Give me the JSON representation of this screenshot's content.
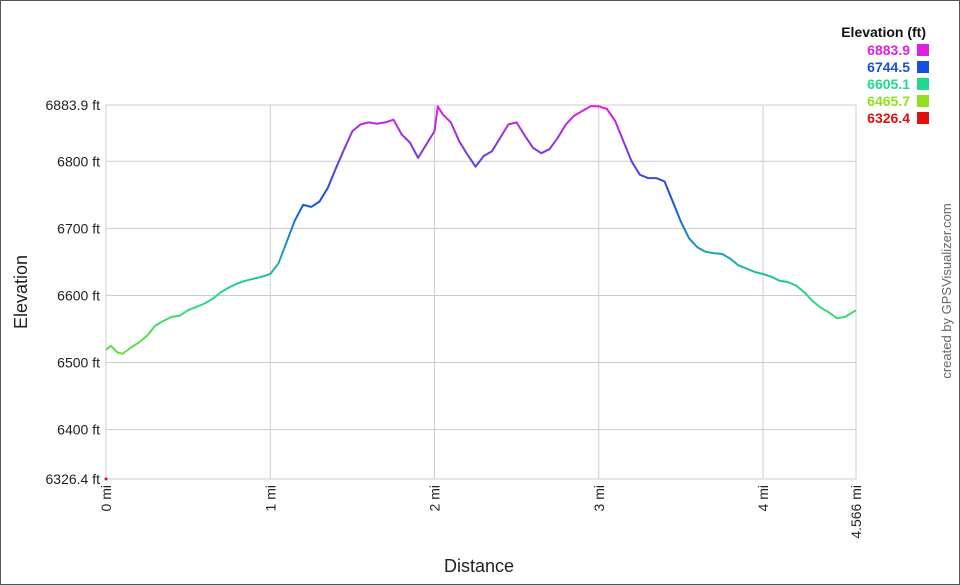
{
  "chart_data": {
    "type": "line",
    "title": "",
    "xlabel": "Distance",
    "ylabel": "Elevation",
    "xlim": [
      0,
      4.566
    ],
    "ylim": [
      6326.4,
      6883.9
    ],
    "x_ticks": [
      {
        "value": 0,
        "label": "0 mi"
      },
      {
        "value": 1,
        "label": "1 mi"
      },
      {
        "value": 2,
        "label": "2 mi"
      },
      {
        "value": 3,
        "label": "3 mi"
      },
      {
        "value": 4,
        "label": "4 mi"
      },
      {
        "value": 4.566,
        "label": "4.566 mi"
      }
    ],
    "y_ticks": [
      {
        "value": 6326.4,
        "label": "6326.4 ft"
      },
      {
        "value": 6400,
        "label": "6400 ft"
      },
      {
        "value": 6500,
        "label": "6500 ft"
      },
      {
        "value": 6600,
        "label": "6600 ft"
      },
      {
        "value": 6700,
        "label": "6700 ft"
      },
      {
        "value": 6800,
        "label": "6800 ft"
      },
      {
        "value": 6883.9,
        "label": "6883.9 ft"
      }
    ],
    "grid": true,
    "legend": {
      "title": "Elevation (ft)",
      "placement": "top-right",
      "entries": [
        {
          "label": "6883.9",
          "color": "#e020e0"
        },
        {
          "label": "6744.5",
          "color": "#1550e0"
        },
        {
          "label": "6605.1",
          "color": "#20d890"
        },
        {
          "label": "6465.7",
          "color": "#90e020"
        },
        {
          "label": "6326.4",
          "color": "#e01010"
        }
      ]
    },
    "series": [
      {
        "x": [
          0,
          0.03,
          0.07,
          0.1,
          0.15,
          0.2,
          0.25,
          0.3,
          0.35,
          0.4,
          0.45,
          0.5,
          0.55,
          0.6,
          0.65,
          0.7,
          0.75,
          0.8,
          0.85,
          0.9,
          0.95,
          1.0,
          1.05,
          1.1,
          1.15,
          1.2,
          1.25,
          1.3,
          1.35,
          1.4,
          1.45,
          1.5,
          1.55,
          1.6,
          1.65,
          1.7,
          1.75,
          1.8,
          1.85,
          1.9,
          1.95,
          2.0,
          2.02,
          2.05,
          2.1,
          2.15,
          2.2,
          2.25,
          2.3,
          2.35,
          2.4,
          2.45,
          2.5,
          2.55,
          2.6,
          2.65,
          2.7,
          2.75,
          2.8,
          2.85,
          2.9,
          2.95,
          3.0,
          3.05,
          3.1,
          3.15,
          3.2,
          3.25,
          3.3,
          3.35,
          3.4,
          3.45,
          3.5,
          3.55,
          3.6,
          3.65,
          3.7,
          3.75,
          3.8,
          3.85,
          3.9,
          3.95,
          4.0,
          4.05,
          4.1,
          4.15,
          4.2,
          4.25,
          4.3,
          4.35,
          4.4,
          4.45,
          4.5,
          4.566
        ],
        "y": [
          6519,
          6525,
          6515,
          6513,
          6522,
          6530,
          6540,
          6555,
          6562,
          6568,
          6570,
          6578,
          6583,
          6588,
          6595,
          6605,
          6612,
          6618,
          6622,
          6625,
          6628,
          6632,
          6648,
          6680,
          6712,
          6735,
          6732,
          6740,
          6760,
          6790,
          6818,
          6845,
          6855,
          6858,
          6856,
          6858,
          6862,
          6840,
          6828,
          6805,
          6825,
          6845,
          6882,
          6870,
          6858,
          6830,
          6810,
          6792,
          6808,
          6815,
          6835,
          6855,
          6858,
          6838,
          6820,
          6812,
          6818,
          6835,
          6855,
          6868,
          6875,
          6882,
          6882,
          6878,
          6860,
          6830,
          6800,
          6780,
          6775,
          6775,
          6770,
          6740,
          6710,
          6685,
          6672,
          6665,
          6663,
          6662,
          6655,
          6645,
          6640,
          6635,
          6632,
          6628,
          6622,
          6620,
          6615,
          6605,
          6592,
          6582,
          6575,
          6566,
          6568,
          6578
        ]
      }
    ]
  },
  "credit": "created by GPSVisualizer.com"
}
